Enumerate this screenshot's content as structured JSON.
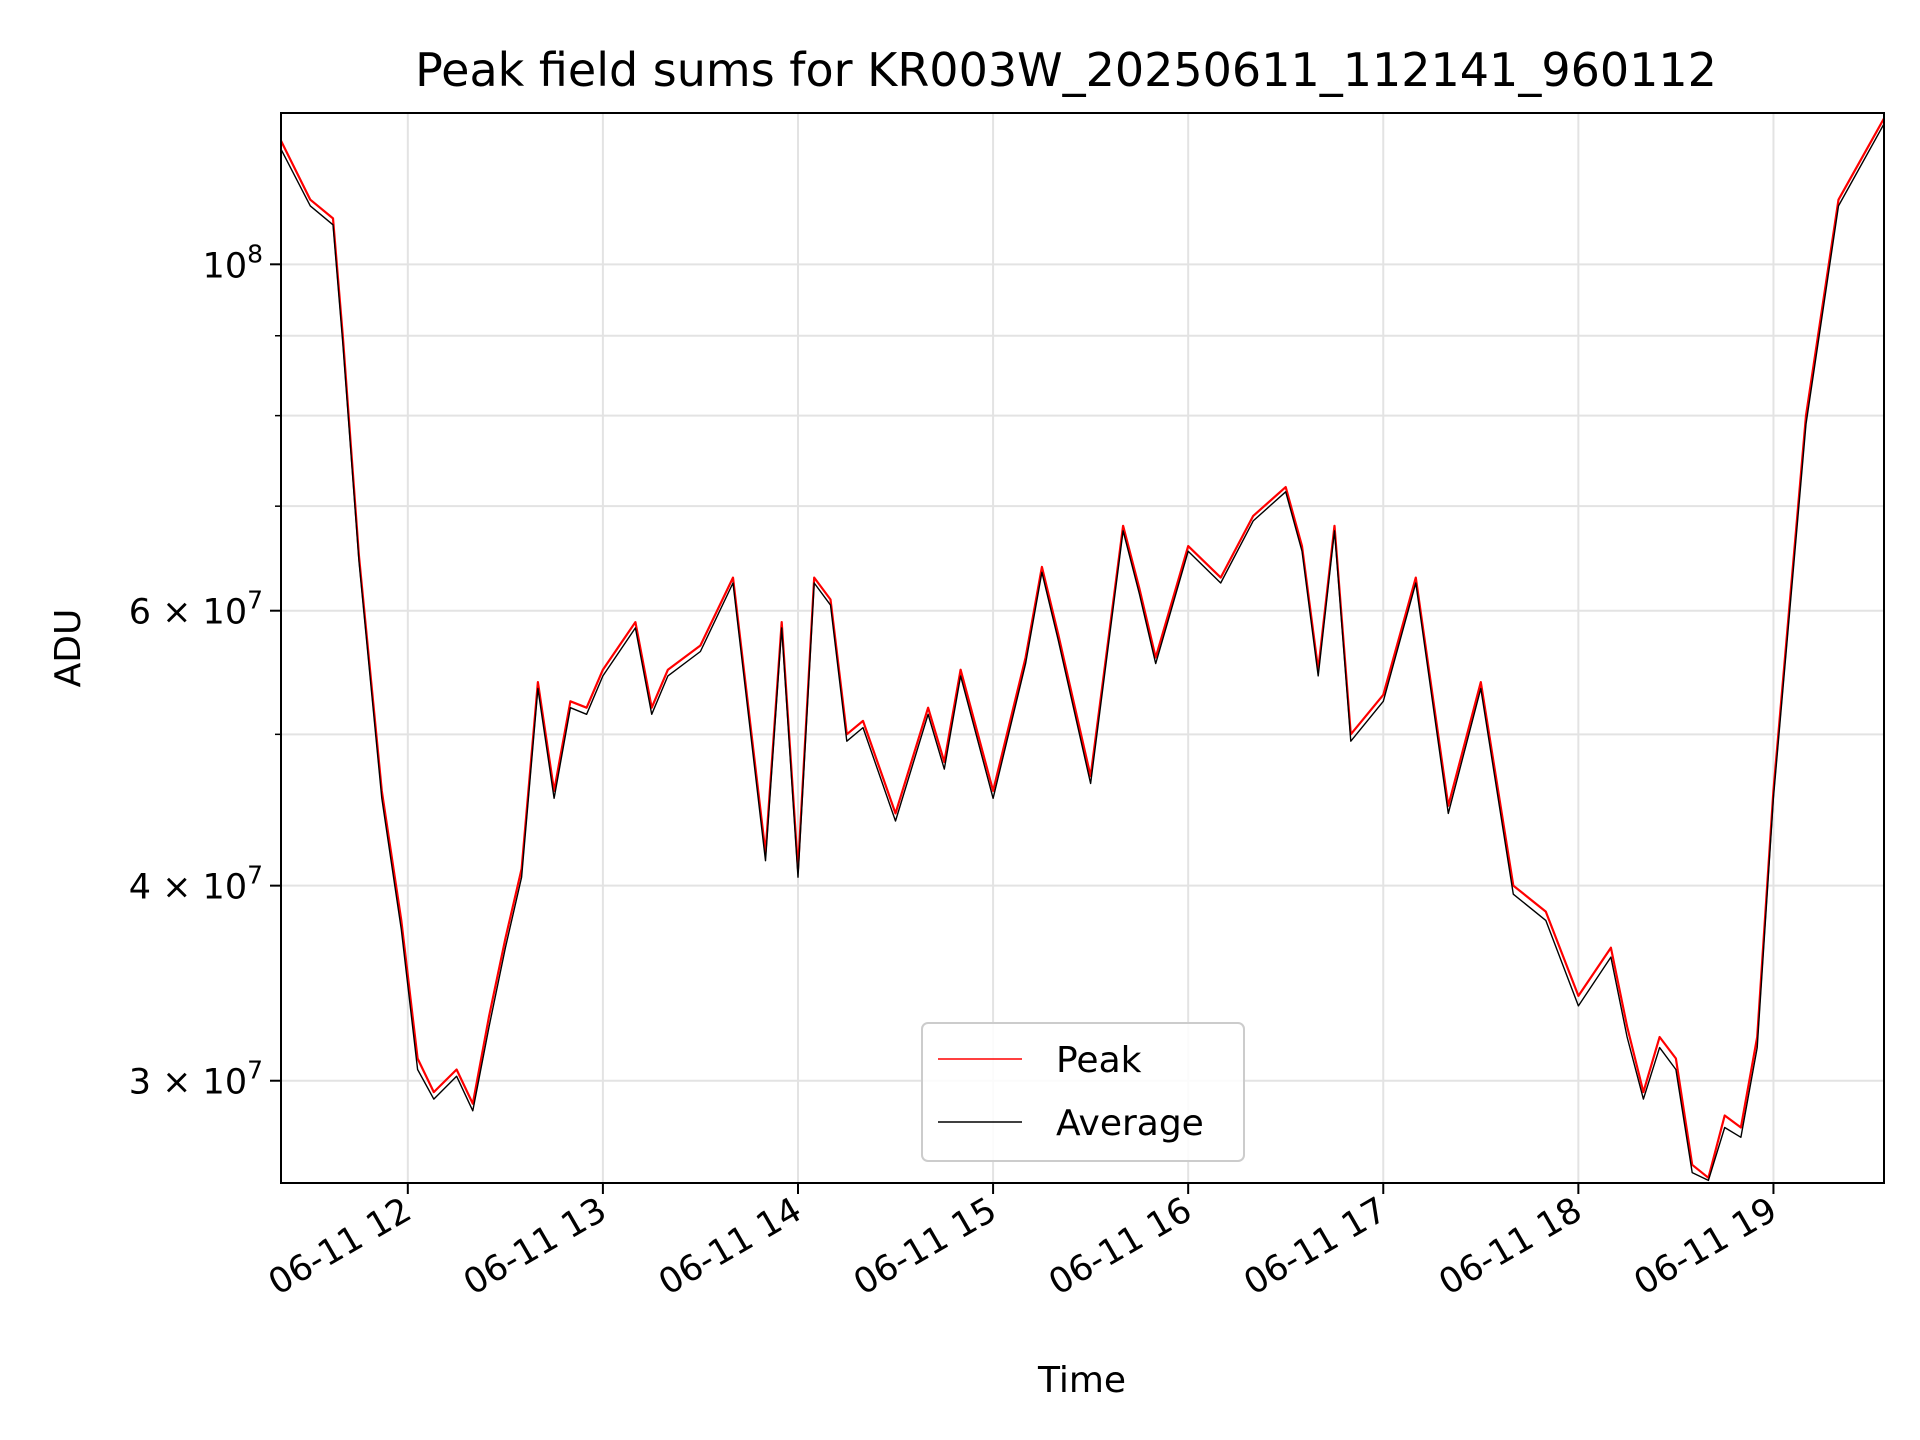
{
  "chart_data": {
    "type": "line",
    "title": "Peak field sums for KR003W_20250611_112141_960112",
    "xlabel": "Time",
    "ylabel": "ADU",
    "yscale": "log",
    "grid": true,
    "legend_position": "lower center",
    "xlim": [
      "2025-06-11 11:21",
      "2025-06-11 19:34"
    ],
    "ylim": [
      25800000,
      125000000
    ],
    "x_ticks": [
      "06-11 12",
      "06-11 13",
      "06-11 14",
      "06-11 15",
      "06-11 16",
      "06-11 17",
      "06-11 18",
      "06-11 19"
    ],
    "y_ticks": [
      {
        "value": 100000000,
        "base": "10",
        "exp": "8"
      },
      {
        "value": 60000000,
        "base": "6 × 10",
        "exp": "7"
      },
      {
        "value": 40000000,
        "base": "4 × 10",
        "exp": "7"
      },
      {
        "value": 30000000,
        "base": "3 × 10",
        "exp": "7"
      }
    ],
    "x": [
      "11:21",
      "11:30",
      "11:37",
      "11:40",
      "11:45",
      "11:52",
      "11:58",
      "12:03",
      "12:08",
      "12:15",
      "12:20",
      "12:25",
      "12:30",
      "12:35",
      "12:40",
      "12:45",
      "12:50",
      "12:55",
      "13:00",
      "13:10",
      "13:15",
      "13:20",
      "13:30",
      "13:40",
      "13:50",
      "13:55",
      "14:00",
      "14:05",
      "14:10",
      "14:15",
      "14:20",
      "14:30",
      "14:40",
      "14:45",
      "14:50",
      "15:00",
      "15:10",
      "15:15",
      "15:20",
      "15:30",
      "15:40",
      "15:45",
      "15:50",
      "16:00",
      "16:10",
      "16:20",
      "16:30",
      "16:35",
      "16:40",
      "16:45",
      "16:50",
      "17:00",
      "17:10",
      "17:20",
      "17:30",
      "17:40",
      "17:50",
      "18:00",
      "18:10",
      "18:15",
      "18:20",
      "18:25",
      "18:30",
      "18:35",
      "18:40",
      "18:45",
      "18:50",
      "18:55",
      "19:00",
      "19:10",
      "19:20",
      "19:34"
    ],
    "series": [
      {
        "name": "Peak",
        "color": "#ff0000",
        "values": [
          120000000,
          110000000,
          107000000,
          90000000,
          65000000,
          46000000,
          38000000,
          31000000,
          29500000,
          30500000,
          29000000,
          33000000,
          37000000,
          41000000,
          54000000,
          46000000,
          52500000,
          52000000,
          55000000,
          59000000,
          52000000,
          55000000,
          57000000,
          63000000,
          42000000,
          59000000,
          41000000,
          63000000,
          61000000,
          50000000,
          51000000,
          44500000,
          52000000,
          48000000,
          55000000,
          46000000,
          56000000,
          64000000,
          58000000,
          47000000,
          68000000,
          62000000,
          56000000,
          66000000,
          63000000,
          69000000,
          72000000,
          66000000,
          55000000,
          68000000,
          50000000,
          53000000,
          63000000,
          45000000,
          54000000,
          40000000,
          38500000,
          34000000,
          36500000,
          32500000,
          29500000,
          32000000,
          31000000,
          26500000,
          26000000,
          28500000,
          28000000,
          32000000,
          46000000,
          80000000,
          110000000,
          124000000
        ]
      },
      {
        "name": "Average",
        "color": "#000000",
        "values": [
          118500000,
          109000000,
          106000000,
          89000000,
          64500000,
          45500000,
          37500000,
          30500000,
          29200000,
          30200000,
          28700000,
          32500000,
          36500000,
          40500000,
          53500000,
          45500000,
          52000000,
          51500000,
          54500000,
          58500000,
          51500000,
          54500000,
          56500000,
          62500000,
          41500000,
          58500000,
          40500000,
          62500000,
          60500000,
          49500000,
          50500000,
          44000000,
          51500000,
          47500000,
          54500000,
          45500000,
          55500000,
          63500000,
          57500000,
          46500000,
          67500000,
          61500000,
          55500000,
          65500000,
          62500000,
          68500000,
          71500000,
          65500000,
          54500000,
          67500000,
          49500000,
          52500000,
          62500000,
          44500000,
          53500000,
          39500000,
          38000000,
          33500000,
          36000000,
          32000000,
          29200000,
          31500000,
          30500000,
          26200000,
          25900000,
          28000000,
          27600000,
          31500000,
          45500000,
          79000000,
          109000000,
          123000000
        ]
      }
    ]
  }
}
